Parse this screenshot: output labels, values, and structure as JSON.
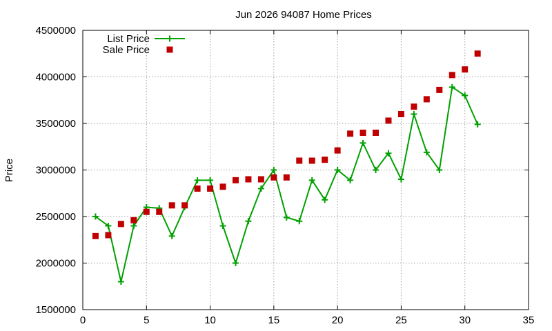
{
  "chart_data": {
    "type": "line",
    "title": "Jun 2026 94087 Home Prices",
    "xlabel": "",
    "ylabel": "Price",
    "xlim": [
      0,
      35
    ],
    "ylim": [
      1500000,
      4500000
    ],
    "xticks": [
      0,
      5,
      10,
      15,
      20,
      25,
      30,
      35
    ],
    "yticks": [
      1500000,
      2000000,
      2500000,
      3000000,
      3500000,
      4000000,
      4500000
    ],
    "grid": true,
    "legend_position": "top-left",
    "series": [
      {
        "name": "List Price",
        "style": "line-points",
        "marker": "plus",
        "color": "#00a000",
        "x": [
          1,
          2,
          3,
          4,
          5,
          6,
          7,
          8,
          9,
          10,
          11,
          12,
          13,
          14,
          15,
          16,
          17,
          18,
          19,
          20,
          21,
          22,
          23,
          24,
          25,
          26,
          27,
          28,
          29,
          30,
          31
        ],
        "values": [
          2500000,
          2400000,
          1800000,
          2400000,
          2600000,
          2590000,
          2290000,
          2600000,
          2890000,
          2890000,
          2400000,
          2000000,
          2450000,
          2800000,
          3000000,
          2490000,
          2450000,
          2890000,
          2680000,
          3000000,
          2890000,
          3290000,
          3000000,
          3180000,
          2900000,
          3600000,
          3190000,
          3000000,
          3890000,
          3800000,
          3490000
        ]
      },
      {
        "name": "Sale Price",
        "style": "points",
        "marker": "square",
        "color": "#c00000",
        "x": [
          1,
          2,
          3,
          4,
          5,
          6,
          7,
          8,
          9,
          10,
          11,
          12,
          13,
          14,
          15,
          16,
          17,
          18,
          19,
          20,
          21,
          22,
          23,
          24,
          25,
          26,
          27,
          28,
          29,
          30,
          31
        ],
        "values": [
          2290000,
          2300000,
          2420000,
          2460000,
          2550000,
          2550000,
          2620000,
          2620000,
          2800000,
          2800000,
          2820000,
          2890000,
          2900000,
          2900000,
          2920000,
          2920000,
          3100000,
          3100000,
          3110000,
          3210000,
          3390000,
          3400000,
          3400000,
          3530000,
          3600000,
          3680000,
          3760000,
          3860000,
          4020000,
          4080000,
          4250000
        ]
      }
    ]
  }
}
